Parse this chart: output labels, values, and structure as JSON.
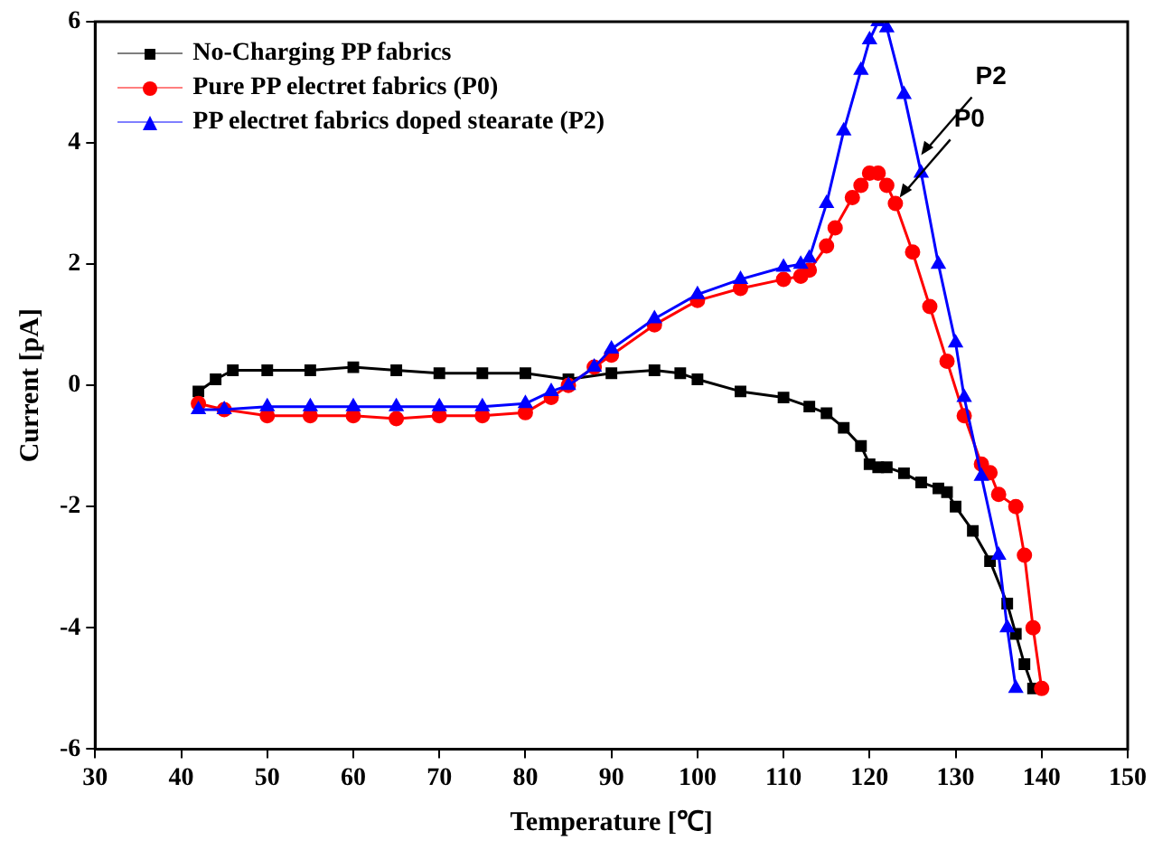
{
  "chart_data": {
    "type": "line",
    "xlabel": "Temperature [℃]",
    "ylabel": "Current [pA]",
    "xlim": [
      30,
      150
    ],
    "xticks": [
      30,
      40,
      50,
      60,
      70,
      80,
      90,
      100,
      110,
      120,
      130,
      140,
      150
    ],
    "ylim": [
      -6,
      6
    ],
    "yticks": [
      -6,
      -4,
      -2,
      0,
      2,
      4,
      6
    ],
    "grid": false,
    "legend": "top left",
    "line_style": "solid",
    "annotations": [
      {
        "text": "P2",
        "x": 126,
        "y": 3.8
      },
      {
        "text": "P0",
        "x": 123.5,
        "y": 3.1
      }
    ],
    "series": [
      {
        "name": "No-Charging PP fabrics",
        "color": "#000000",
        "marker": "square",
        "x": [
          42,
          44,
          46,
          50,
          55,
          60,
          65,
          70,
          75,
          80,
          85,
          90,
          95,
          98,
          100,
          105,
          110,
          113,
          115,
          117,
          119,
          120,
          121,
          122,
          124,
          126,
          128,
          129,
          130,
          132,
          134,
          136,
          137,
          138,
          139
        ],
        "values": [
          -0.1,
          0.1,
          0.25,
          0.25,
          0.25,
          0.3,
          0.25,
          0.2,
          0.2,
          0.2,
          0.1,
          0.2,
          0.25,
          0.2,
          0.1,
          -0.1,
          -0.2,
          -0.35,
          -0.46,
          -0.7,
          -1.0,
          -1.3,
          -1.35,
          -1.35,
          -1.45,
          -1.6,
          -1.7,
          -1.76,
          -2.0,
          -2.4,
          -2.9,
          -3.6,
          -4.1,
          -4.6,
          -5.0
        ]
      },
      {
        "name": "Pure PP electret fabrics (P0)",
        "color": "#ff0000",
        "marker": "circle",
        "x": [
          42,
          45,
          50,
          55,
          60,
          65,
          70,
          75,
          80,
          83,
          85,
          88,
          90,
          95,
          100,
          105,
          110,
          112,
          113,
          115,
          116,
          118,
          119,
          120,
          121,
          122,
          123,
          125,
          127,
          129,
          131,
          133,
          134,
          135,
          137,
          138,
          139,
          140
        ],
        "values": [
          -0.3,
          -0.4,
          -0.5,
          -0.5,
          -0.5,
          -0.55,
          -0.5,
          -0.5,
          -0.45,
          -0.2,
          0,
          0.3,
          0.5,
          1.0,
          1.4,
          1.6,
          1.75,
          1.8,
          1.9,
          2.3,
          2.6,
          3.1,
          3.3,
          3.5,
          3.5,
          3.3,
          3.0,
          2.2,
          1.3,
          0.4,
          -0.5,
          -1.3,
          -1.44,
          -1.8,
          -2.0,
          -2.8,
          -4.0,
          -5.0
        ]
      },
      {
        "name": "PP electret fabrics doped stearate (P2)",
        "color": "#0000ff",
        "marker": "triangle",
        "x": [
          42,
          45,
          50,
          55,
          60,
          65,
          70,
          75,
          80,
          83,
          85,
          88,
          90,
          95,
          100,
          105,
          110,
          112,
          113,
          115,
          117,
          119,
          120,
          121,
          122,
          124,
          126,
          128,
          130,
          131,
          133,
          135,
          136,
          137
        ],
        "values": [
          -0.4,
          -0.4,
          -0.35,
          -0.35,
          -0.35,
          -0.35,
          -0.35,
          -0.35,
          -0.3,
          -0.1,
          0,
          0.3,
          0.6,
          1.1,
          1.5,
          1.75,
          1.95,
          2.0,
          2.1,
          3.0,
          4.2,
          5.2,
          5.7,
          6.0,
          5.9,
          4.8,
          3.5,
          2.0,
          0.7,
          -0.2,
          -1.5,
          -2.8,
          -4.0,
          -5.0
        ]
      }
    ]
  }
}
